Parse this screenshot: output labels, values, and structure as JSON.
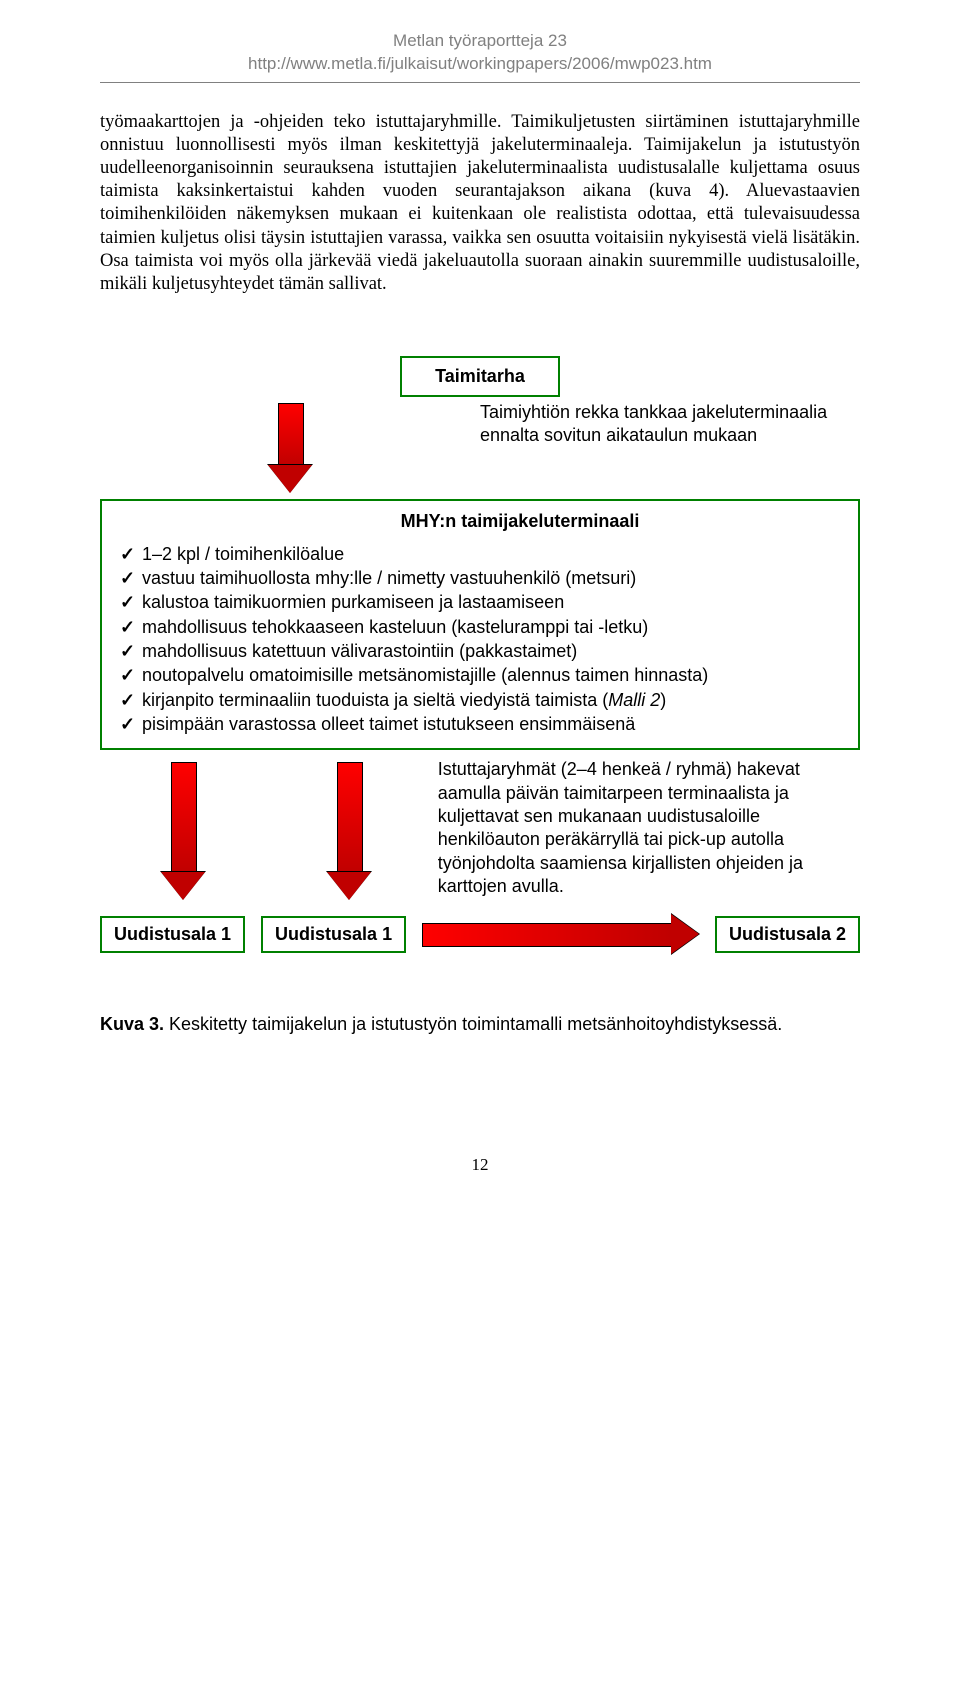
{
  "header": {
    "title": "Metlan työraportteja 23",
    "url": "http://www.metla.fi/julkaisut/workingpapers/2006/mwp023.htm"
  },
  "body_text": "työmaakarttojen ja -ohjeiden teko istuttajaryhmille. Taimikuljetusten siirtäminen istuttajaryhmille onnistuu luonnollisesti myös ilman keskitettyjä jakeluterminaaleja. Taimijakelun ja istutustyön uudelleenorganisoinnin seurauksena istuttajien jakeluterminaalista uudistusalalle kuljettama osuus taimista kaksinkertaistui kahden vuoden seurantajakson aikana (kuva 4). Aluevastaavien toimihenkilöiden näkemyksen mukaan ei kuitenkaan ole realistista odottaa, että tulevaisuudessa taimien kuljetus olisi täysin istuttajien varassa, vaikka sen osuutta voitaisiin nykyisestä vielä lisätäkin. Osa taimista voi myös olla järkevää viedä jakeluautolla suoraan ainakin suuremmille uudistusaloille, mikäli kuljetusyhteydet tämän sallivat.",
  "diagram": {
    "colors": {
      "box_border": "#008000",
      "arrow_fill_start": "#ff0000",
      "arrow_fill_end": "#c00000",
      "arrow_outline": "#000000",
      "background": "#ffffff"
    },
    "taimitarha_label": "Taimitarha",
    "arrow1_text": "Taimiyhtiön rekka tankkaa jakeluterminaalia ennalta sovitun aikataulun mukaan",
    "mhy_title": "MHY:n taimijakeluterminaali",
    "checklist": [
      "1–2 kpl / toimihenkilöalue",
      "vastuu taimihuollosta mhy:lle / nimetty vastuuhenkilö (metsuri)",
      "kalustoa taimikuormien purkamiseen ja lastaamiseen",
      "mahdollisuus tehokkaaseen kasteluun (kasteluramppi tai -letku)",
      "mahdollisuus katettuun välivarastointiin (pakkastaimet)",
      "noutopalvelu omatoimisille metsänomistajille (alennus taimen hinnasta)",
      "kirjanpito terminaaliin tuoduista ja sieltä viedyistä taimista (<i>Malli 2</i>)",
      "pisimpään varastossa olleet taimet istutukseen ensimmäisenä"
    ],
    "arrow2_text": "Istuttajaryhmät (2–4 henkeä / ryhmä) hakevat aamulla päivän taimitarpeen terminaalista ja kuljettavat sen mukanaan uudistusaloille henkilöauton peräkärryllä tai pick-up autolla työnjohdolta saamiensa kirjallisten ohjeiden ja karttojen avulla.",
    "areas": {
      "a1": "Uudistusala 1",
      "a2": "Uudistusala 1",
      "a3": "Uudistusala 2"
    }
  },
  "caption": {
    "label": "Kuva 3.",
    "text": " Keskitetty taimijakelun ja istutustyön toimintamalli metsänhoitoyhdistyksessä."
  },
  "page_number": "12"
}
